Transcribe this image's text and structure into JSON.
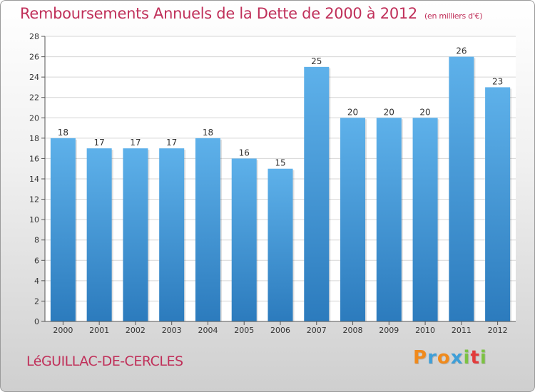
{
  "header": {
    "title": "Remboursements Annuels de la Dette de 2000 à 2012",
    "subtitle": "(en milliers d'€)"
  },
  "footer": {
    "commune": "LéGUILLAC-DE-CERCLES",
    "brand": {
      "letters": [
        "P",
        "r",
        "o",
        "x",
        "i",
        "t",
        "i"
      ],
      "colors": [
        "#f08a1c",
        "#3f9fd8",
        "#f08a1c",
        "#3f9fd8",
        "#7cc242",
        "#e23b3b",
        "#7cc242"
      ]
    }
  },
  "chart_data": {
    "type": "bar",
    "title": "Remboursements Annuels de la Dette de 2000 à 2012",
    "subtitle": "(en milliers d'€)",
    "categories": [
      "2000",
      "2001",
      "2002",
      "2003",
      "2004",
      "2005",
      "2006",
      "2007",
      "2008",
      "2009",
      "2010",
      "2011",
      "2012"
    ],
    "values": [
      18,
      17,
      17,
      17,
      18,
      16,
      15,
      25,
      20,
      20,
      20,
      26,
      23
    ],
    "ylim": [
      0,
      28
    ],
    "yticks": [
      0,
      2,
      4,
      6,
      8,
      10,
      12,
      14,
      16,
      18,
      20,
      22,
      24,
      26,
      28
    ],
    "grid": true,
    "bar_color_top": "#5eb1ea",
    "bar_color_bottom": "#2c7bbd",
    "grid_color": "#d6d6d6"
  }
}
